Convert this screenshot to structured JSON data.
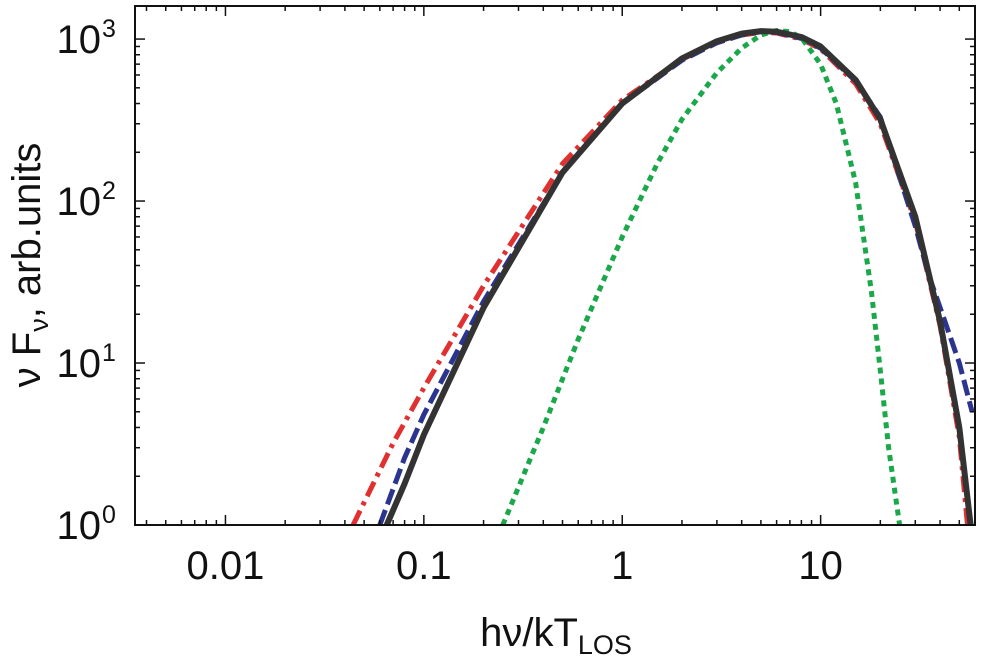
{
  "chart_data": {
    "type": "line",
    "title": "",
    "xlabel": {
      "main": "hν/kT",
      "sub": "LOS"
    },
    "ylabel": {
      "main": "ν F",
      "sub": "ν",
      "rest": ", arb.units"
    },
    "x_scale": "log",
    "y_scale": "log",
    "xlim": [
      0.0035,
      60
    ],
    "ylim": [
      1,
      1600
    ],
    "x_ticks": [
      {
        "value": 0.01,
        "label": "0.01"
      },
      {
        "value": 0.1,
        "label": "0.1"
      },
      {
        "value": 1,
        "label": "1"
      },
      {
        "value": 10,
        "label": "10"
      }
    ],
    "y_ticks": [
      {
        "value": 1,
        "base": "10",
        "exp": "0"
      },
      {
        "value": 10,
        "base": "10",
        "exp": "1"
      },
      {
        "value": 100,
        "base": "10",
        "exp": "2"
      },
      {
        "value": 1000,
        "base": "10",
        "exp": "3"
      }
    ],
    "grid": false,
    "legend": "none",
    "series": [
      {
        "color": "#e03030",
        "style": "dash-dot",
        "x": [
          0.044,
          0.07,
          0.1,
          0.2,
          0.5,
          1,
          2,
          3,
          4,
          5,
          6,
          8,
          10,
          15,
          20,
          30,
          40,
          50,
          55
        ],
        "y": [
          1,
          3.2,
          7,
          30,
          170,
          420,
          750,
          950,
          1060,
          1100,
          1090,
          1000,
          870,
          530,
          300,
          75,
          17,
          3.5,
          1
        ]
      },
      {
        "color": "#2b3590",
        "style": "dashed",
        "x": [
          0.06,
          0.08,
          0.1,
          0.2,
          0.5,
          1,
          2,
          3,
          4,
          5,
          6,
          8,
          10,
          15,
          20,
          30,
          35,
          40,
          50,
          58
        ],
        "y": [
          1,
          2.6,
          4.8,
          24,
          150,
          400,
          740,
          950,
          1060,
          1110,
          1100,
          1010,
          880,
          550,
          330,
          70,
          35,
          22,
          10,
          5
        ]
      },
      {
        "color": "#1ba84b",
        "style": "dotted",
        "x": [
          0.25,
          0.4,
          0.6,
          1,
          1.5,
          2,
          3,
          4,
          5,
          6,
          7,
          8,
          10,
          12,
          15,
          18,
          20,
          22,
          25
        ],
        "y": [
          1,
          4,
          14,
          60,
          170,
          320,
          620,
          880,
          1060,
          1130,
          1110,
          1020,
          700,
          400,
          130,
          28,
          9,
          3,
          1
        ]
      },
      {
        "color": "#333333",
        "style": "solid",
        "x": [
          0.065,
          0.08,
          0.1,
          0.2,
          0.5,
          1,
          2,
          3,
          4,
          5,
          6,
          8,
          10,
          15,
          20,
          30,
          40,
          50,
          57
        ],
        "y": [
          1,
          1.8,
          3.6,
          22,
          150,
          400,
          760,
          970,
          1080,
          1120,
          1110,
          1030,
          900,
          560,
          320,
          80,
          18,
          4,
          1
        ]
      }
    ]
  }
}
